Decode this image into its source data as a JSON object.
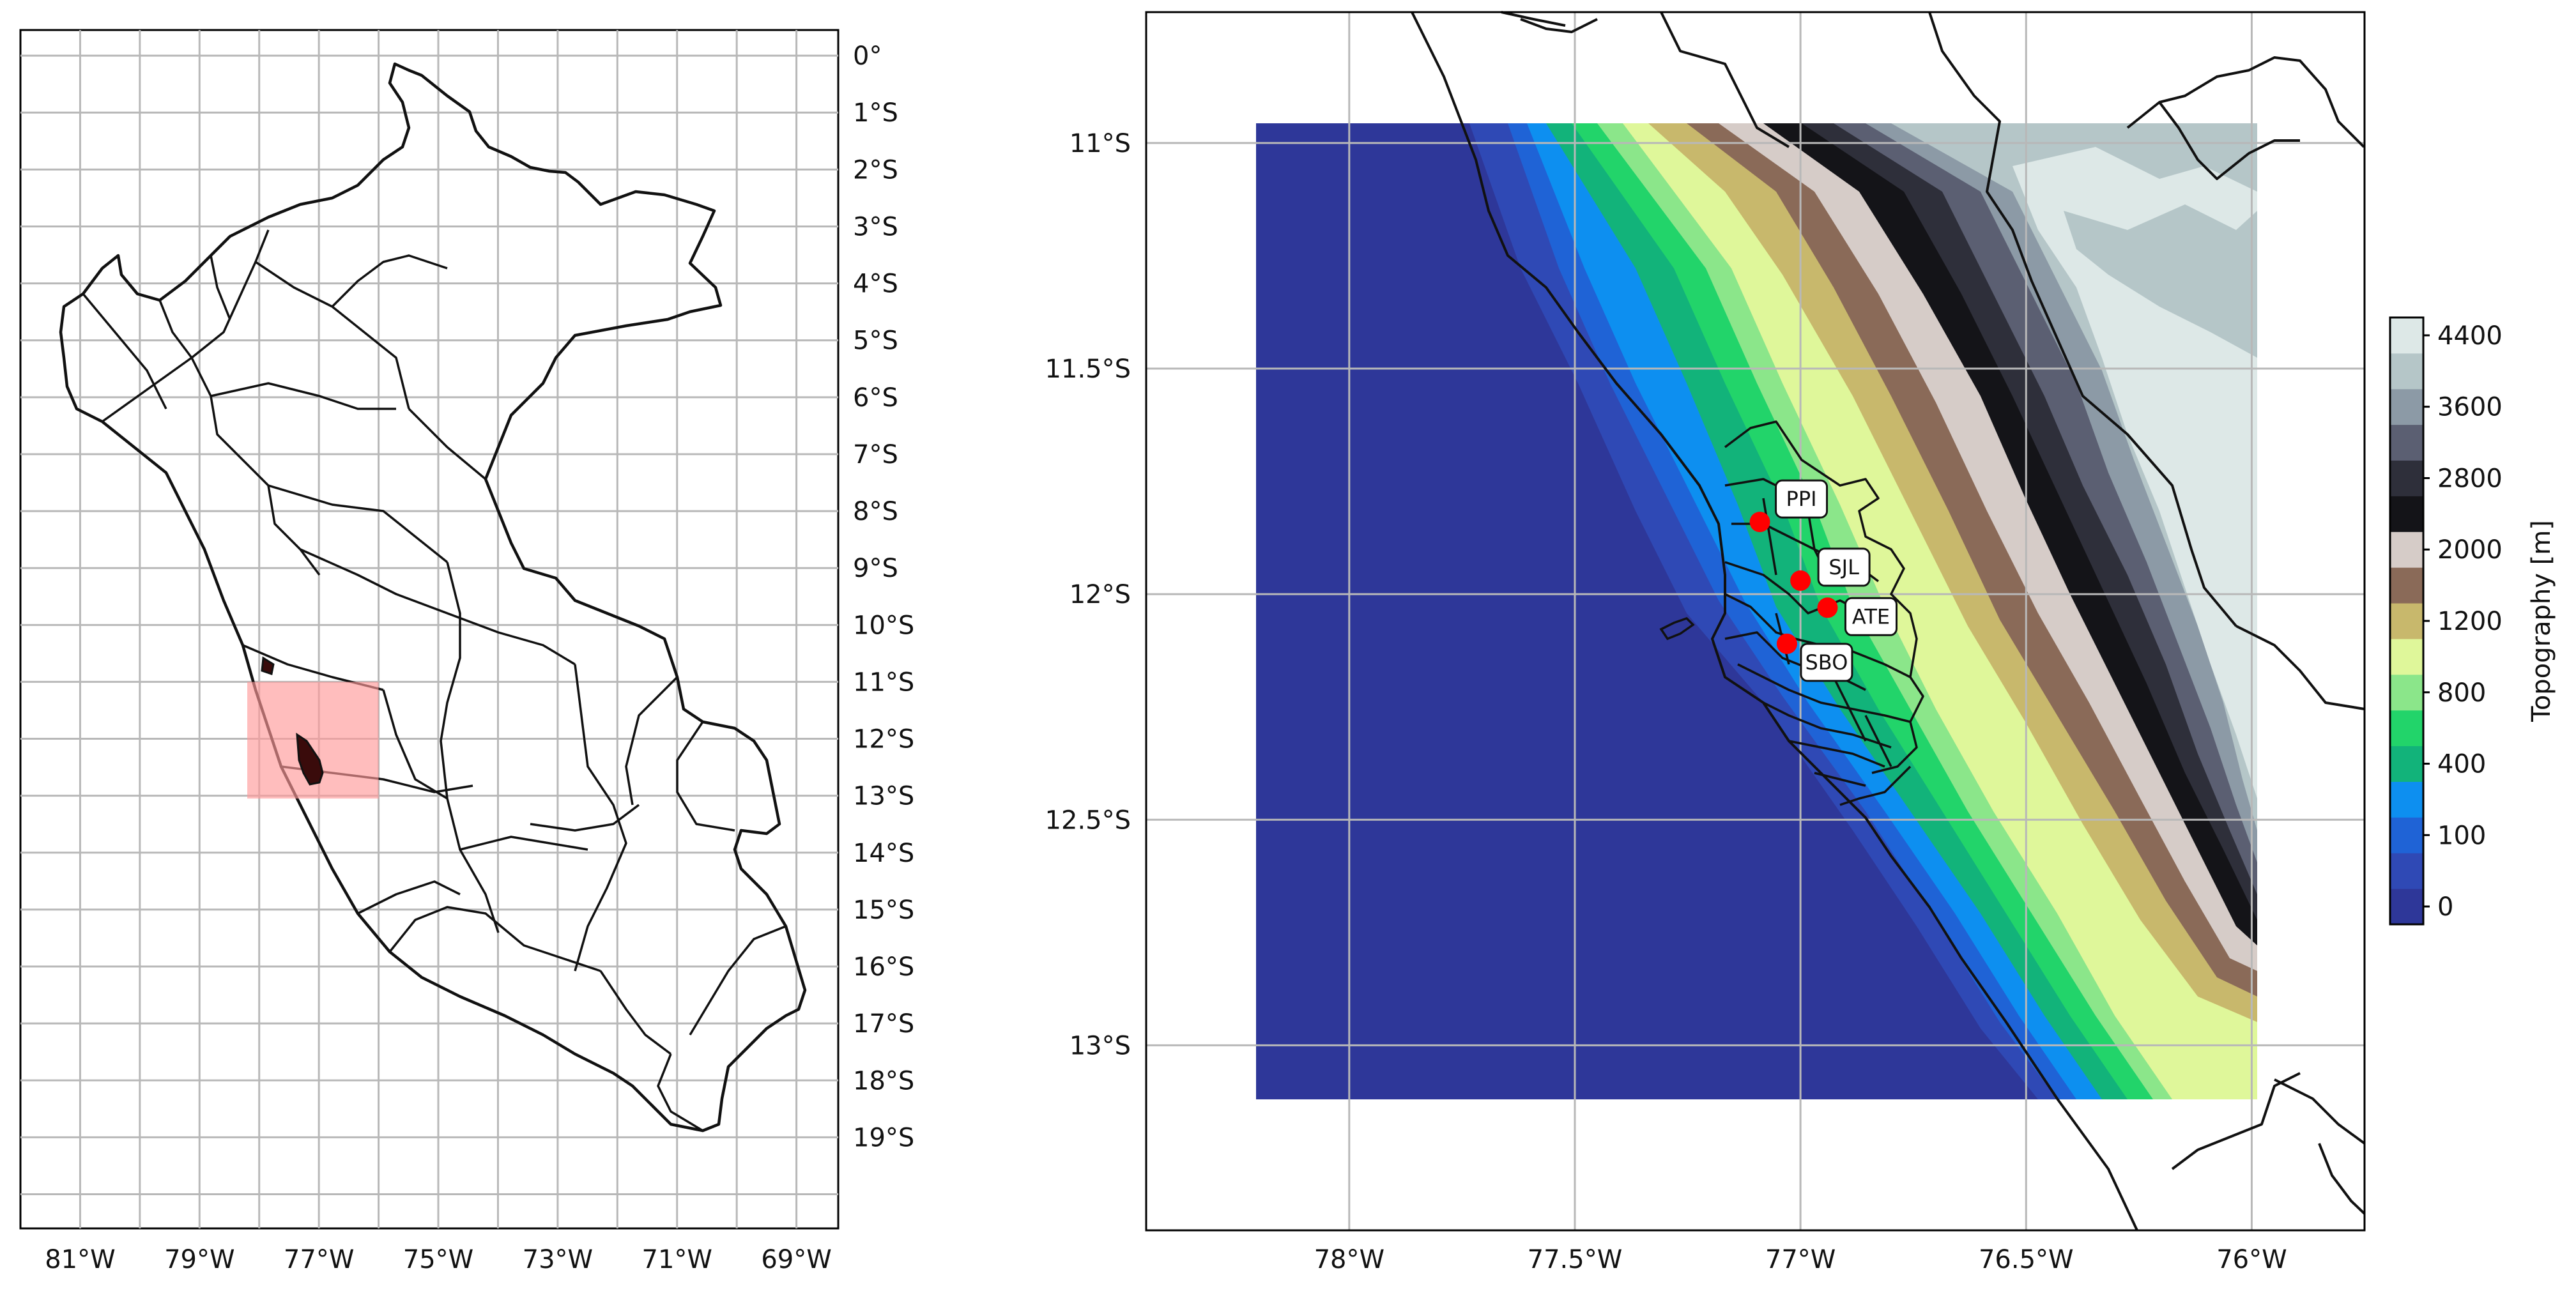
{
  "left_map": {
    "x_ticks": [
      "81°W",
      "79°W",
      "77°W",
      "75°W",
      "73°W",
      "71°W",
      "69°W"
    ],
    "y_ticks": [
      "0°",
      "1°S",
      "2°S",
      "3°S",
      "4°S",
      "5°S",
      "6°S",
      "7°S",
      "8°S",
      "9°S",
      "10°S",
      "11°S",
      "12°S",
      "13°S",
      "14°S",
      "15°S",
      "16°S",
      "17°S",
      "18°S",
      "19°S"
    ],
    "highlight_box": {
      "lon": [
        -78.2,
        -76.0
      ],
      "lat": [
        -11.0,
        -13.05
      ],
      "color": "#ff9a9a"
    }
  },
  "right_map": {
    "x_ticks": [
      "78°W",
      "77.5°W",
      "77°W",
      "76.5°W",
      "76°W"
    ],
    "y_ticks": [
      "11°S",
      "11.5°S",
      "12°S",
      "12.5°S",
      "13°S"
    ],
    "domain": {
      "lon": [
        -78.2,
        -75.95
      ],
      "lat": [
        -10.95,
        -13.12
      ]
    },
    "stations": [
      {
        "name": "PPI",
        "lon": -77.09,
        "lat": -11.84
      },
      {
        "name": "SJL",
        "lon": -77.0,
        "lat": -11.97
      },
      {
        "name": "ATE",
        "lon": -76.94,
        "lat": -12.03
      },
      {
        "name": "SBO",
        "lon": -77.03,
        "lat": -12.11
      }
    ],
    "station_color": "#ff0000"
  },
  "colorbar": {
    "label": "Topography [m]",
    "ticks": [
      "0",
      "100",
      "400",
      "800",
      "1200",
      "2000",
      "2800",
      "3600",
      "4400"
    ],
    "colors": [
      "#2e3799",
      "#2f49b5",
      "#1f63d6",
      "#0d8ff0",
      "#12b37a",
      "#22d46a",
      "#8be68a",
      "#dff79a",
      "#c8b86c",
      "#8a6a58",
      "#d6ccc8",
      "#141418",
      "#2e2f3a",
      "#5b5f72",
      "#8c9aa6",
      "#b5c6c8",
      "#dde8e7"
    ]
  }
}
